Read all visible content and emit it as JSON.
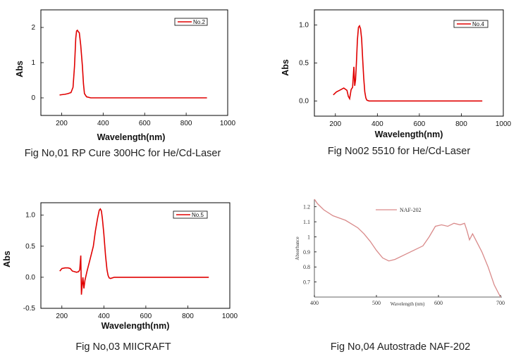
{
  "captions": [
    "Fig No,01 RP Cure 300HC for He/Cd-Laser",
    "Fig No02 5510 for He/Cd-Laser",
    "Fig No,03 MIICRAFT",
    "Fig No,04 Autostrade NAF-202"
  ],
  "colors": {
    "series": "#e00000",
    "naf": "#d98a8a"
  },
  "chart_data": [
    {
      "type": "line",
      "xlabel": "Wavelength(nm)",
      "ylabel": "Abs",
      "xlim": [
        100,
        1000
      ],
      "ylim": [
        -0.5,
        2.5
      ],
      "xticks": [
        200,
        400,
        600,
        800,
        1000
      ],
      "yticks": [
        0,
        1,
        2
      ],
      "legend": "top-right",
      "series": [
        {
          "name": "No.2",
          "x": [
            190,
            200,
            215,
            230,
            245,
            255,
            262,
            268,
            272,
            276,
            280,
            285,
            292,
            300,
            305,
            310,
            320,
            340,
            400,
            600,
            800,
            900
          ],
          "y": [
            0.08,
            0.09,
            0.1,
            0.12,
            0.15,
            0.3,
            0.9,
            1.7,
            1.9,
            1.92,
            1.88,
            1.85,
            1.5,
            0.9,
            0.4,
            0.12,
            0.03,
            0.0,
            0.0,
            0.0,
            0.0,
            0.0
          ]
        }
      ]
    },
    {
      "type": "line",
      "xlabel": "Wavelength(nm)",
      "ylabel": "Abs",
      "xlim": [
        100,
        1000
      ],
      "ylim": [
        -0.2,
        1.2
      ],
      "xticks": [
        200,
        400,
        600,
        800,
        1000
      ],
      "yticks": [
        "0.0",
        "0.5",
        "1.0"
      ],
      "legend": "top-right",
      "series": [
        {
          "name": "No.4",
          "x": [
            190,
            205,
            220,
            240,
            255,
            262,
            268,
            275,
            282,
            288,
            292,
            296,
            300,
            305,
            310,
            315,
            320,
            325,
            330,
            335,
            340,
            345,
            350,
            360,
            400,
            600,
            800,
            900
          ],
          "y": [
            0.08,
            0.12,
            0.14,
            0.17,
            0.14,
            0.06,
            0.03,
            0.15,
            0.18,
            0.45,
            0.2,
            0.28,
            0.5,
            0.8,
            0.97,
            0.99,
            0.95,
            0.82,
            0.55,
            0.3,
            0.12,
            0.04,
            0.01,
            0.0,
            0.0,
            0.0,
            0.0,
            0.0
          ]
        }
      ]
    },
    {
      "type": "line",
      "xlabel": "Wavelength(nm)",
      "ylabel": "Abs",
      "xlim": [
        100,
        1000
      ],
      "ylim": [
        -0.5,
        1.2
      ],
      "xticks": [
        200,
        400,
        600,
        800,
        1000
      ],
      "yticks": [
        "-0.5",
        "0.0",
        "0.5",
        "1.0"
      ],
      "legend": "top-right",
      "series": [
        {
          "name": "No.5",
          "x": [
            190,
            200,
            215,
            230,
            240,
            250,
            260,
            270,
            280,
            285,
            290,
            293,
            296,
            300,
            305,
            310,
            320,
            335,
            350,
            360,
            370,
            378,
            383,
            388,
            393,
            400,
            408,
            415,
            420,
            425,
            432,
            440,
            450,
            500,
            600,
            800,
            900
          ],
          "y": [
            0.1,
            0.14,
            0.15,
            0.15,
            0.14,
            0.1,
            0.09,
            0.08,
            0.09,
            0.12,
            0.35,
            -0.28,
            -0.15,
            0.0,
            -0.18,
            -0.05,
            0.1,
            0.3,
            0.5,
            0.75,
            0.95,
            1.08,
            1.1,
            1.07,
            0.95,
            0.7,
            0.35,
            0.12,
            0.03,
            -0.01,
            -0.02,
            -0.01,
            0.0,
            0.0,
            0.0,
            0.0,
            0.0
          ]
        }
      ]
    },
    {
      "type": "line",
      "xlabel": "Wavelength (nm)",
      "ylabel": "Absorbance",
      "xlim": [
        400,
        700
      ],
      "ylim": [
        0.6,
        1.25
      ],
      "xticks": [
        400,
        500,
        600,
        700
      ],
      "yticks": [
        "1.2",
        "1.1",
        "1",
        "0.9",
        "0.8",
        "0.7"
      ],
      "legend": "top-left",
      "series": [
        {
          "name": "NAF-202",
          "x": [
            400,
            405,
            415,
            430,
            450,
            470,
            480,
            490,
            500,
            510,
            520,
            530,
            545,
            560,
            575,
            585,
            595,
            605,
            615,
            625,
            635,
            642,
            646,
            650,
            655,
            660,
            670,
            680,
            690,
            700
          ],
          "y": [
            1.25,
            1.22,
            1.18,
            1.14,
            1.11,
            1.06,
            1.02,
            0.97,
            0.91,
            0.86,
            0.84,
            0.85,
            0.88,
            0.91,
            0.94,
            1.0,
            1.07,
            1.08,
            1.07,
            1.09,
            1.08,
            1.09,
            1.04,
            0.98,
            1.02,
            0.98,
            0.9,
            0.8,
            0.68,
            0.6
          ]
        }
      ]
    }
  ]
}
